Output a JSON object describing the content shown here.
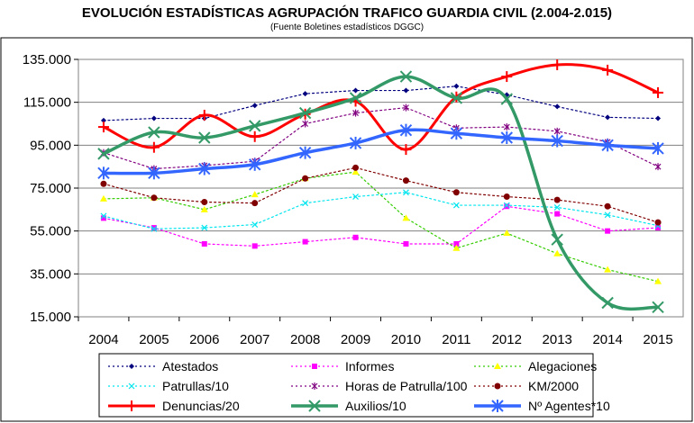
{
  "chart_data": {
    "type": "line",
    "title": "EVOLUCIÓN ESTADÍSTICAS AGRUPACIÓN TRAFICO GUARDIA CIVIL (2.004-2.015)",
    "subtitle": "(Fuente Boletines estadísticos DGGC)",
    "xlabel": "",
    "ylabel": "",
    "categories": [
      "2004",
      "2005",
      "2006",
      "2007",
      "2008",
      "2009",
      "2010",
      "2011",
      "2012",
      "2013",
      "2014",
      "2015"
    ],
    "ylim": [
      15000,
      135000
    ],
    "yticks": [
      15000,
      35000,
      55000,
      75000,
      95000,
      115000,
      135000
    ],
    "ytick_labels": [
      "15.000",
      "35.000",
      "55.000",
      "75.000",
      "95.000",
      "115.000",
      "135.000"
    ],
    "grid": true,
    "legend_position": "bottom",
    "series": [
      {
        "name": "Atestados",
        "color": "#00007f",
        "style": "dotted",
        "marker": "diamond",
        "width": 1.2,
        "smooth": false,
        "values": [
          106500,
          107500,
          107500,
          113500,
          119000,
          120500,
          120500,
          122500,
          118500,
          113000,
          108000,
          107500
        ]
      },
      {
        "name": "Informes",
        "color": "#ff00ff",
        "style": "dotted",
        "marker": "square",
        "width": 1.2,
        "smooth": false,
        "values": [
          61000,
          56500,
          49000,
          48000,
          50000,
          52000,
          49000,
          49000,
          66500,
          63000,
          55000,
          56500
        ]
      },
      {
        "name": "Alegaciones",
        "color": "#33cc00",
        "style": "dotted",
        "marker": "triangle",
        "markerColor": "#ffff00",
        "width": 1.2,
        "smooth": false,
        "values": [
          70000,
          70500,
          65000,
          72000,
          79500,
          82500,
          61000,
          47000,
          54000,
          44500,
          37000,
          31500
        ]
      },
      {
        "name": "Patrullas/10",
        "color": "#00e5ee",
        "style": "dotted",
        "marker": "x",
        "width": 1.2,
        "smooth": false,
        "values": [
          62000,
          56000,
          56500,
          58000,
          68000,
          71000,
          73000,
          67000,
          67000,
          66000,
          62500,
          57500
        ]
      },
      {
        "name": "Horas de Patrulla/100",
        "color": "#800080",
        "style": "dotted",
        "marker": "star",
        "width": 1.2,
        "smooth": false,
        "values": [
          91500,
          84000,
          85500,
          87500,
          105000,
          110000,
          112500,
          103000,
          103500,
          101500,
          96500,
          85000
        ]
      },
      {
        "name": "KM/2000",
        "color": "#800000",
        "style": "dotted",
        "marker": "circle",
        "width": 1.2,
        "smooth": false,
        "values": [
          77000,
          70500,
          68500,
          68000,
          79500,
          84500,
          78500,
          73000,
          71000,
          69500,
          66500,
          59000
        ]
      },
      {
        "name": "Denuncias/20",
        "color": "#ff0000",
        "style": "solid",
        "marker": "plus",
        "width": 3,
        "smooth": true,
        "values": [
          103500,
          94000,
          109000,
          99000,
          109500,
          115500,
          93000,
          117500,
          127000,
          132500,
          130000,
          119500
        ]
      },
      {
        "name": "Auxilios/10",
        "color": "#339966",
        "style": "solid",
        "marker": "x",
        "width": 3.5,
        "smooth": true,
        "values": [
          91000,
          101000,
          98500,
          104000,
          110000,
          117000,
          127000,
          117000,
          116500,
          51000,
          21500,
          19500
        ]
      },
      {
        "name": "Nº Agentes*10",
        "color": "#3366ff",
        "style": "solid",
        "marker": "star",
        "width": 3.5,
        "smooth": true,
        "values": [
          82000,
          82000,
          84000,
          86000,
          91500,
          96000,
          102000,
          100500,
          98500,
          97000,
          95000,
          93500
        ]
      }
    ]
  }
}
